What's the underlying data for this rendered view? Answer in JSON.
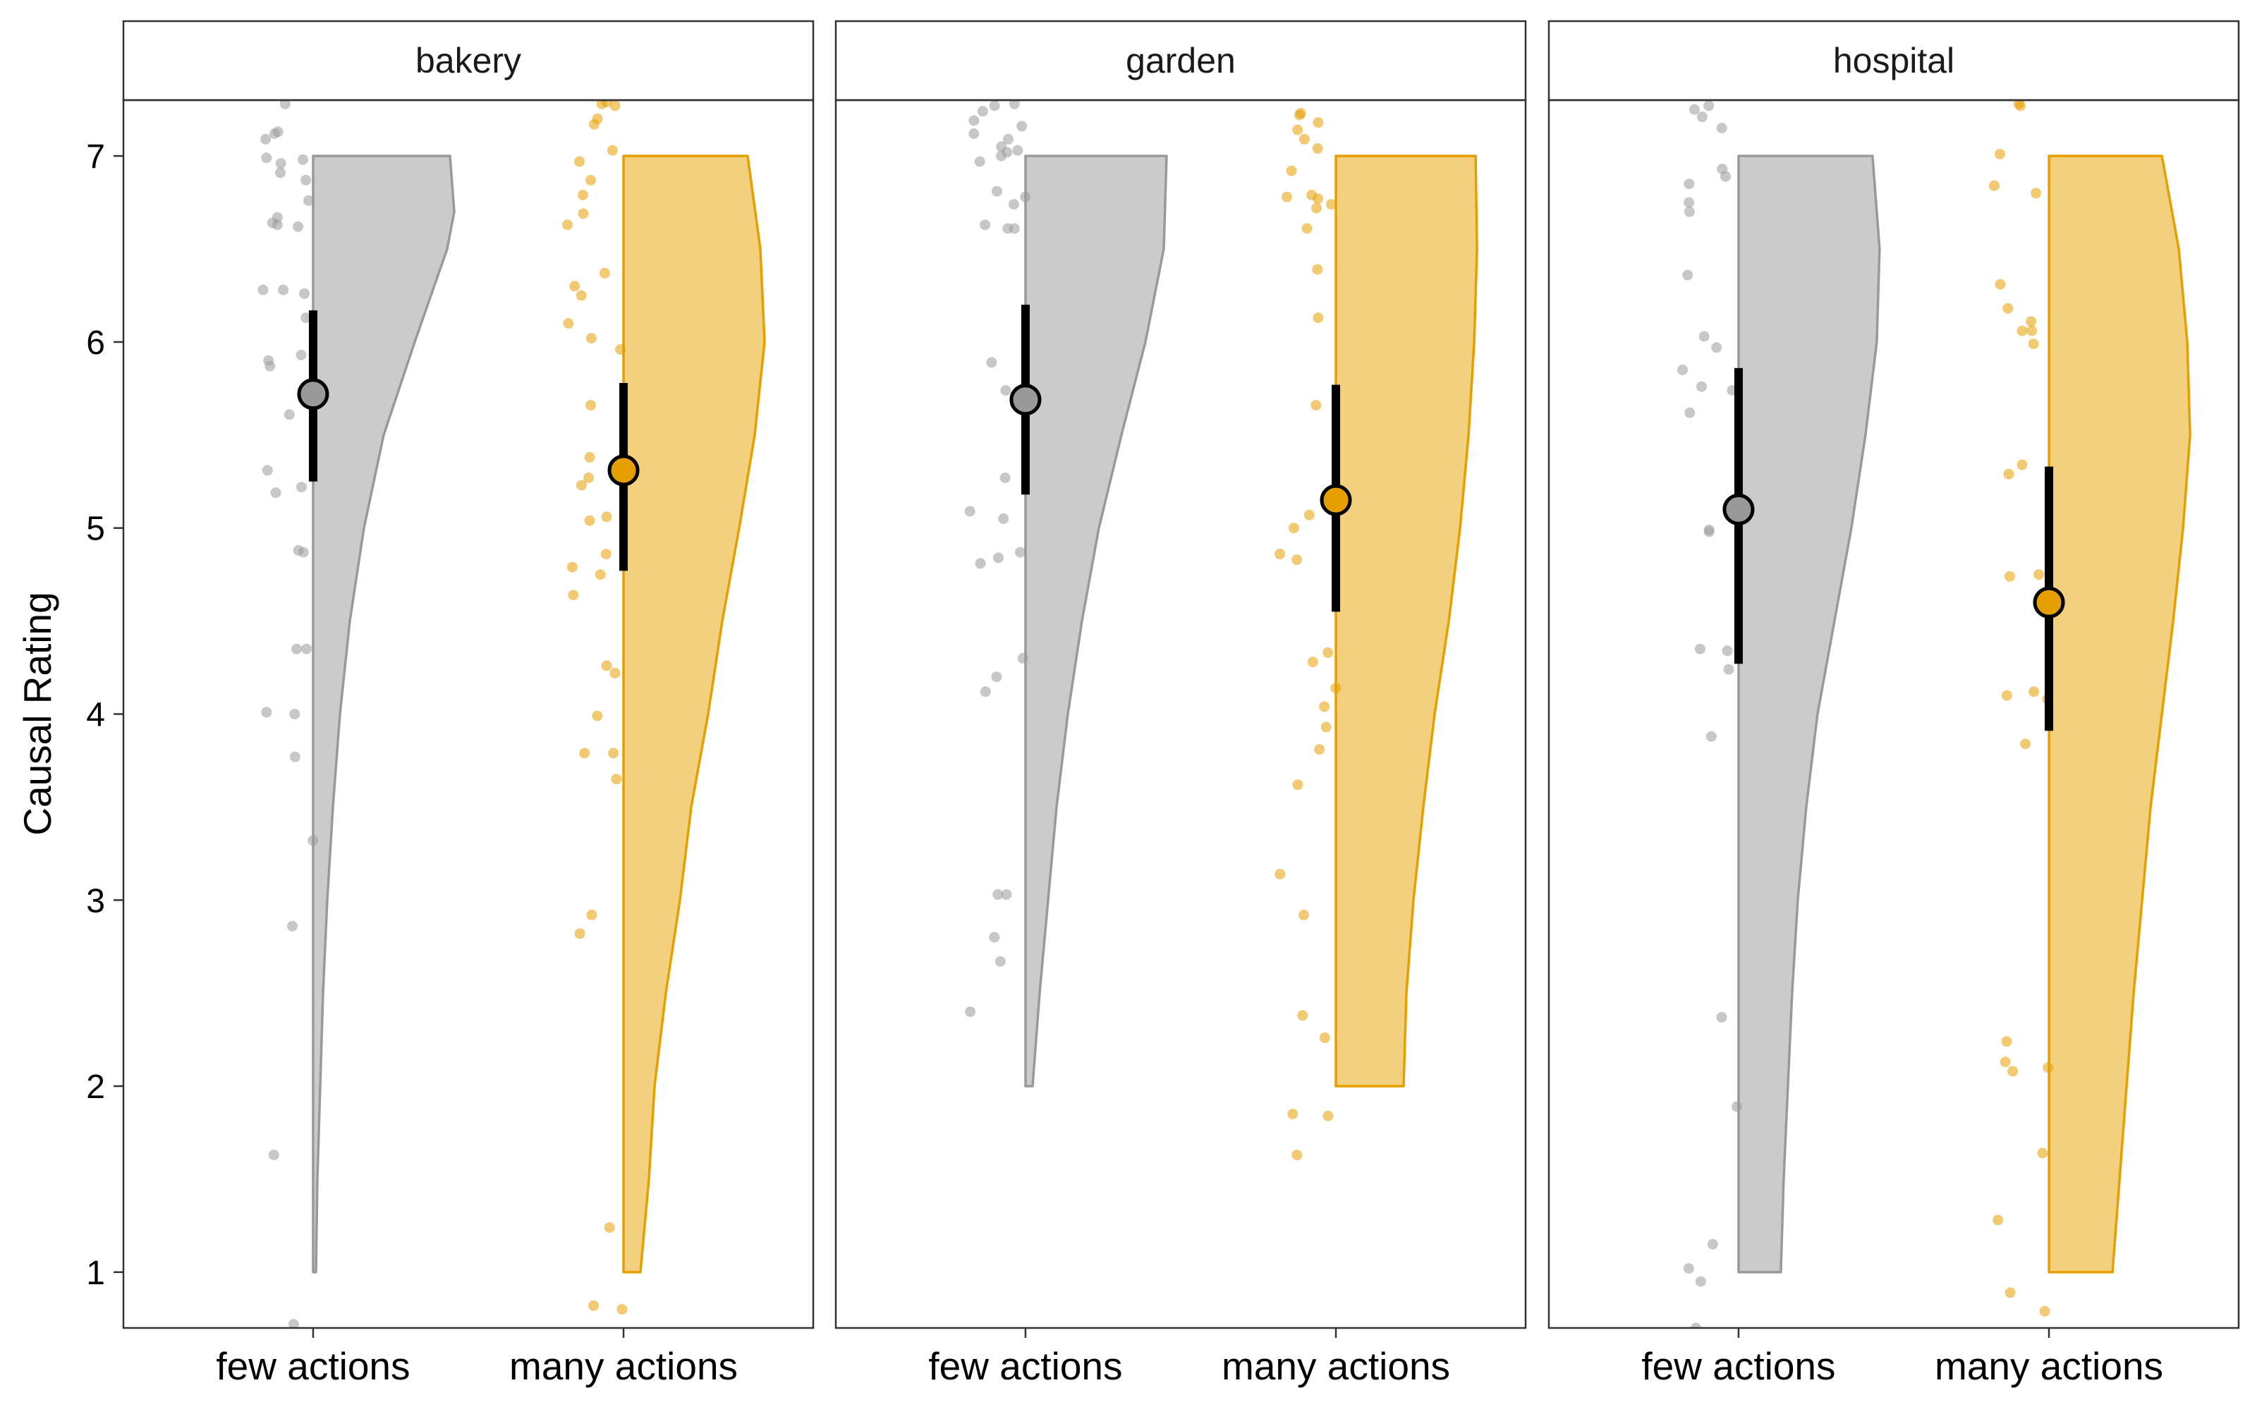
{
  "chart_data": {
    "type": "raincloud",
    "ylabel": "Causal Rating",
    "ylim": [
      0.7,
      7.3
    ],
    "yticks": [
      1,
      2,
      3,
      4,
      5,
      6,
      7
    ],
    "categories": [
      "few actions",
      "many actions"
    ],
    "colors": {
      "few actions": "#999999",
      "many actions": "#E69F00"
    },
    "panels": [
      {
        "facet": "bakery",
        "groups": [
          {
            "category": "few actions",
            "mean": 5.72,
            "ci": [
              5.25,
              6.17
            ],
            "density": {
              "range": [
                1,
                7
              ],
              "shape": [
                [
                  1,
                  0.02
                ],
                [
                  1.5,
                  0.03
                ],
                [
                  2,
                  0.05
                ],
                [
                  2.5,
                  0.07
                ],
                [
                  3,
                  0.1
                ],
                [
                  3.5,
                  0.14
                ],
                [
                  4,
                  0.19
                ],
                [
                  4.5,
                  0.26
                ],
                [
                  5,
                  0.36
                ],
                [
                  5.5,
                  0.5
                ],
                [
                  6,
                  0.72
                ],
                [
                  6.5,
                  0.95
                ],
                [
                  6.7,
                  1.0
                ],
                [
                  7,
                  0.97
                ]
              ]
            },
            "points": [
              0.72,
              1.63,
              2.86,
              3.32,
              3.77,
              4.0,
              4.01,
              4.35,
              4.35,
              4.87,
              4.88,
              5.19,
              5.22,
              5.31,
              5.61,
              5.87,
              5.9,
              5.93,
              6.13,
              6.26,
              6.28,
              6.28,
              6.62,
              6.63,
              6.64,
              6.67,
              6.76,
              6.87,
              6.91,
              6.96,
              6.98,
              6.99,
              7.09,
              7.12,
              7.13,
              7.28
            ]
          },
          {
            "category": "many actions",
            "mean": 5.31,
            "ci": [
              4.77,
              5.78
            ],
            "density": {
              "range": [
                1,
                7
              ],
              "shape": [
                [
                  1,
                  0.12
                ],
                [
                  1.5,
                  0.18
                ],
                [
                  2,
                  0.22
                ],
                [
                  2.5,
                  0.3
                ],
                [
                  3,
                  0.4
                ],
                [
                  3.5,
                  0.48
                ],
                [
                  4,
                  0.6
                ],
                [
                  4.5,
                  0.7
                ],
                [
                  5,
                  0.82
                ],
                [
                  5.5,
                  0.93
                ],
                [
                  6,
                  1.0
                ],
                [
                  6.5,
                  0.97
                ],
                [
                  7,
                  0.88
                ]
              ]
            },
            "points": [
              0.8,
              0.82,
              1.24,
              2.82,
              2.92,
              3.65,
              3.79,
              3.79,
              3.99,
              4.22,
              4.26,
              4.64,
              4.75,
              4.79,
              4.86,
              5.04,
              5.06,
              5.23,
              5.27,
              5.38,
              5.66,
              5.96,
              6.02,
              6.1,
              6.25,
              6.3,
              6.37,
              6.63,
              6.69,
              6.79,
              6.87,
              6.97,
              7.03,
              7.17,
              7.2,
              7.27,
              7.28,
              7.29
            ]
          }
        ]
      },
      {
        "facet": "garden",
        "groups": [
          {
            "category": "few actions",
            "mean": 5.69,
            "ci": [
              5.18,
              6.2
            ],
            "density": {
              "range": [
                2,
                7
              ],
              "shape": [
                [
                  2,
                  0.05
                ],
                [
                  2.5,
                  0.1
                ],
                [
                  3,
                  0.16
                ],
                [
                  3.5,
                  0.22
                ],
                [
                  4,
                  0.3
                ],
                [
                  4.5,
                  0.4
                ],
                [
                  5,
                  0.52
                ],
                [
                  5.5,
                  0.68
                ],
                [
                  6,
                  0.85
                ],
                [
                  6.5,
                  0.98
                ],
                [
                  7,
                  1.0
                ]
              ]
            },
            "points": [
              2.4,
              2.67,
              2.8,
              3.03,
              3.03,
              4.12,
              4.2,
              4.3,
              4.81,
              4.84,
              4.87,
              5.05,
              5.09,
              5.27,
              5.74,
              5.89,
              6.61,
              6.61,
              6.63,
              6.74,
              6.78,
              6.81,
              6.97,
              7.0,
              7.02,
              7.03,
              7.05,
              7.09,
              7.12,
              7.16,
              7.19,
              7.24,
              7.27,
              7.28
            ]
          },
          {
            "category": "many actions",
            "mean": 5.15,
            "ci": [
              4.55,
              5.77
            ],
            "density": {
              "range": [
                2,
                7
              ],
              "shape": [
                [
                  2,
                  0.48
                ],
                [
                  2.5,
                  0.5
                ],
                [
                  3,
                  0.55
                ],
                [
                  3.5,
                  0.62
                ],
                [
                  4,
                  0.7
                ],
                [
                  4.5,
                  0.8
                ],
                [
                  5,
                  0.88
                ],
                [
                  5.5,
                  0.94
                ],
                [
                  6,
                  0.98
                ],
                [
                  6.5,
                  1.0
                ],
                [
                  7,
                  0.99
                ]
              ]
            },
            "points": [
              1.63,
              1.84,
              1.85,
              2.26,
              2.38,
              2.92,
              3.14,
              3.62,
              3.81,
              3.93,
              4.04,
              4.14,
              4.28,
              4.33,
              4.83,
              4.86,
              5.0,
              5.07,
              5.66,
              6.13,
              6.39,
              6.61,
              6.72,
              6.74,
              6.77,
              6.78,
              6.79,
              6.92,
              7.04,
              7.09,
              7.14,
              7.18,
              7.22,
              7.23
            ]
          }
        ]
      },
      {
        "facet": "hospital",
        "groups": [
          {
            "category": "few actions",
            "mean": 5.1,
            "ci": [
              4.27,
              5.86
            ],
            "density": {
              "range": [
                1,
                7
              ],
              "shape": [
                [
                  1,
                  0.3
                ],
                [
                  1.5,
                  0.32
                ],
                [
                  2,
                  0.35
                ],
                [
                  2.5,
                  0.38
                ],
                [
                  3,
                  0.42
                ],
                [
                  3.5,
                  0.48
                ],
                [
                  4,
                  0.56
                ],
                [
                  4.5,
                  0.68
                ],
                [
                  5,
                  0.8
                ],
                [
                  5.5,
                  0.9
                ],
                [
                  6,
                  0.98
                ],
                [
                  6.5,
                  1.0
                ],
                [
                  7,
                  0.95
                ]
              ]
            },
            "points": [
              0.7,
              0.95,
              1.02,
              1.15,
              1.89,
              2.37,
              3.88,
              4.24,
              4.34,
              4.35,
              4.98,
              4.99,
              5.62,
              5.74,
              5.76,
              5.85,
              5.97,
              6.03,
              6.36,
              6.7,
              6.75,
              6.85,
              6.89,
              6.93,
              7.15,
              7.21,
              7.25,
              7.27
            ]
          },
          {
            "category": "many actions",
            "mean": 4.6,
            "ci": [
              3.91,
              5.33
            ],
            "density": {
              "range": [
                1,
                7
              ],
              "shape": [
                [
                  1,
                  0.45
                ],
                [
                  1.5,
                  0.5
                ],
                [
                  2,
                  0.55
                ],
                [
                  2.5,
                  0.6
                ],
                [
                  3,
                  0.66
                ],
                [
                  3.5,
                  0.72
                ],
                [
                  4,
                  0.8
                ],
                [
                  4.5,
                  0.88
                ],
                [
                  5,
                  0.95
                ],
                [
                  5.5,
                  1.0
                ],
                [
                  6,
                  0.98
                ],
                [
                  6.5,
                  0.92
                ],
                [
                  7,
                  0.8
                ]
              ]
            },
            "points": [
              0.79,
              0.89,
              1.28,
              1.64,
              2.08,
              2.1,
              2.13,
              2.24,
              3.84,
              4.08,
              4.1,
              4.12,
              4.74,
              4.75,
              5.29,
              5.34,
              5.99,
              6.06,
              6.06,
              6.11,
              6.18,
              6.31,
              6.8,
              6.84,
              7.01,
              7.27,
              7.28
            ]
          }
        ]
      }
    ]
  }
}
